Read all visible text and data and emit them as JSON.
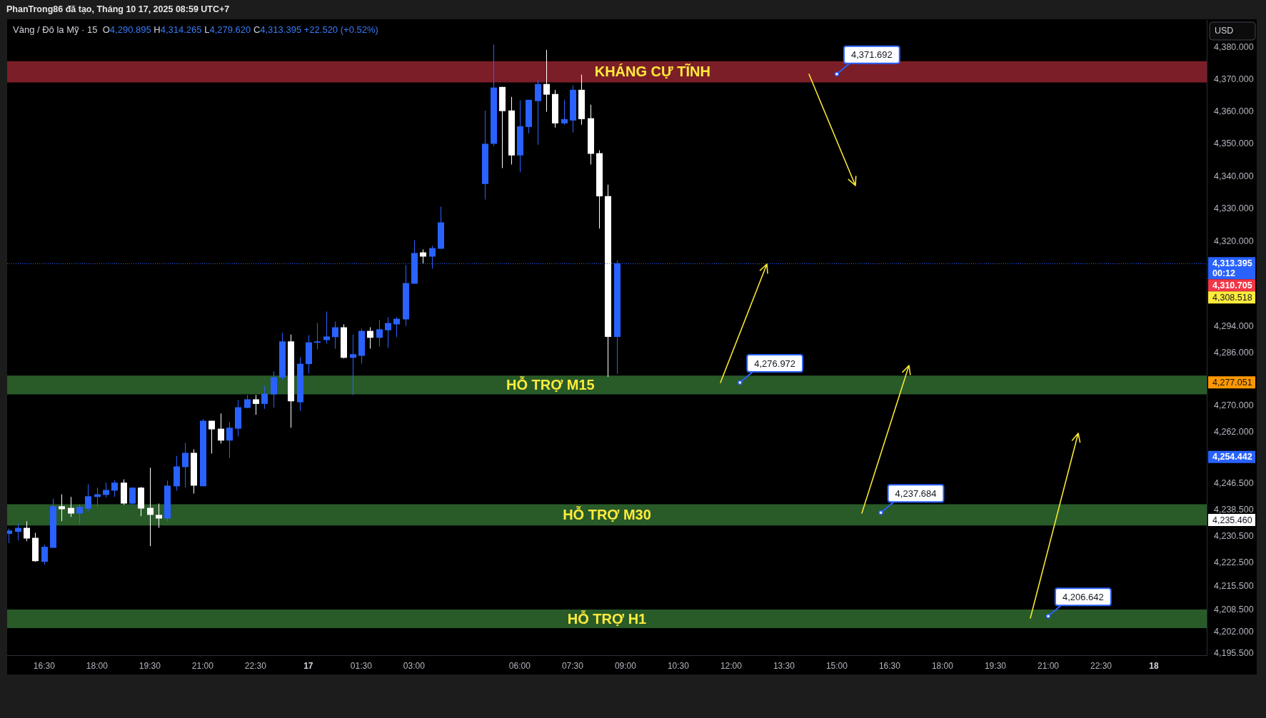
{
  "chart_data": {
    "type": "candlestick",
    "title": "Vàng / Đô la Mỹ · 15",
    "subtitle": "O4,290.895 H4,314.265 L4,279.620 C4,313.395 +22.520 (+0.52%)",
    "ylabel": "USD",
    "x": [
      "2025-10-16T15:30",
      "2025-10-16T15:45",
      "2025-10-16T16:00",
      "2025-10-16T16:15",
      "2025-10-16T16:30",
      "2025-10-16T16:45",
      "2025-10-16T17:00",
      "2025-10-16T17:15",
      "2025-10-16T17:30",
      "2025-10-16T17:45",
      "2025-10-16T18:00",
      "2025-10-16T18:15",
      "2025-10-16T18:30",
      "2025-10-16T18:45",
      "2025-10-16T19:00",
      "2025-10-16T19:15",
      "2025-10-16T19:30",
      "2025-10-16T19:45",
      "2025-10-16T20:00",
      "2025-10-16T20:15",
      "2025-10-16T20:30",
      "2025-10-16T20:45",
      "2025-10-16T21:00",
      "2025-10-16T21:15",
      "2025-10-16T21:30",
      "2025-10-16T21:45",
      "2025-10-16T22:00",
      "2025-10-16T22:15",
      "2025-10-16T22:30",
      "2025-10-16T22:45",
      "2025-10-16T23:00",
      "2025-10-16T23:15",
      "2025-10-16T23:30",
      "2025-10-16T23:45",
      "2025-10-17T00:00",
      "2025-10-17T00:15",
      "2025-10-17T00:30",
      "2025-10-17T00:45",
      "2025-10-17T01:00",
      "2025-10-17T01:15",
      "2025-10-17T01:30",
      "2025-10-17T01:45",
      "2025-10-17T02:00",
      "2025-10-17T02:15",
      "2025-10-17T02:30",
      "2025-10-17T02:45",
      "2025-10-17T03:00",
      "2025-10-17T03:15",
      "2025-10-17T03:30",
      "2025-10-17T03:45",
      "2025-10-17T05:00",
      "2025-10-17T05:15",
      "2025-10-17T05:30",
      "2025-10-17T05:45",
      "2025-10-17T06:00",
      "2025-10-17T06:15",
      "2025-10-17T06:30",
      "2025-10-17T06:45",
      "2025-10-17T07:00",
      "2025-10-17T07:15",
      "2025-10-17T07:30",
      "2025-10-17T07:45",
      "2025-10-17T08:00",
      "2025-10-17T08:15",
      "2025-10-17T08:30",
      "2025-10-17T08:45"
    ],
    "ohlc": [
      [
        4231.3,
        4232.9,
        4228.5,
        4232.3
      ],
      [
        4231.9,
        4234.4,
        4229.3,
        4233.1
      ],
      [
        4233.1,
        4235.1,
        4229.1,
        4229.9
      ],
      [
        4230.1,
        4231.6,
        4222.9,
        4223.1
      ],
      [
        4222.9,
        4228.0,
        4222.0,
        4227.4
      ],
      [
        4227.1,
        4241.9,
        4227.1,
        4239.6
      ],
      [
        4239.6,
        4243.2,
        4235.1,
        4238.7
      ],
      [
        4239.1,
        4242.4,
        4236.4,
        4237.4
      ],
      [
        4237.4,
        4240.2,
        4234.2,
        4239.4
      ],
      [
        4238.9,
        4246.2,
        4238.1,
        4242.6
      ],
      [
        4242.4,
        4245.2,
        4239.6,
        4243.2
      ],
      [
        4243.0,
        4246.7,
        4242.2,
        4244.5
      ],
      [
        4244.3,
        4247.5,
        4242.4,
        4246.7
      ],
      [
        4246.7,
        4247.7,
        4240.0,
        4240.4
      ],
      [
        4240.4,
        4245.2,
        4240.0,
        4245.2
      ],
      [
        4245.2,
        4245.4,
        4236.6,
        4238.9
      ],
      [
        4239.1,
        4251.2,
        4227.6,
        4237.0
      ],
      [
        4237.0,
        4240.4,
        4233.1,
        4235.9
      ],
      [
        4235.9,
        4247.3,
        4235.1,
        4245.8
      ],
      [
        4245.6,
        4254.8,
        4244.3,
        4251.6
      ],
      [
        4251.4,
        4258.7,
        4245.2,
        4255.7
      ],
      [
        4255.7,
        4256.8,
        4243.4,
        4245.8
      ],
      [
        4245.6,
        4265.9,
        4245.6,
        4265.4
      ],
      [
        4265.4,
        4265.4,
        4255.5,
        4262.8
      ],
      [
        4263.0,
        4267.6,
        4258.5,
        4259.4
      ],
      [
        4259.4,
        4265.0,
        4254.2,
        4263.3
      ],
      [
        4263.0,
        4271.7,
        4260.7,
        4269.5
      ],
      [
        4269.3,
        4273.2,
        4269.2,
        4271.9
      ],
      [
        4271.9,
        4273.2,
        4267.2,
        4270.5
      ],
      [
        4270.5,
        4276.0,
        4269.0,
        4273.6
      ],
      [
        4273.4,
        4280.4,
        4269.4,
        4278.6
      ],
      [
        4278.5,
        4292.1,
        4277.8,
        4289.5
      ],
      [
        4289.5,
        4291.6,
        4263.3,
        4271.3
      ],
      [
        4271.0,
        4284.7,
        4268.4,
        4282.7
      ],
      [
        4282.6,
        4291.4,
        4279.7,
        4289.2
      ],
      [
        4289.1,
        4295.1,
        4287.1,
        4289.5
      ],
      [
        4289.9,
        4298.6,
        4288.8,
        4291.0
      ],
      [
        4290.8,
        4295.5,
        4287.3,
        4293.8
      ],
      [
        4293.8,
        4294.7,
        4284.3,
        4284.5
      ],
      [
        4284.5,
        4291.6,
        4273.2,
        4285.6
      ],
      [
        4285.1,
        4293.4,
        4282.7,
        4292.7
      ],
      [
        4292.7,
        4293.8,
        4287.3,
        4290.6
      ],
      [
        4290.6,
        4296.0,
        4287.9,
        4293.2
      ],
      [
        4292.9,
        4296.9,
        4287.5,
        4295.1
      ],
      [
        4294.7,
        4296.9,
        4290.8,
        4296.4
      ],
      [
        4296.2,
        4312.8,
        4294.2,
        4307.3
      ],
      [
        4307.1,
        4320.4,
        4307.1,
        4316.5
      ],
      [
        4316.7,
        4317.6,
        4313.2,
        4315.4
      ],
      [
        4315.4,
        4318.7,
        4311.7,
        4318.0
      ],
      [
        4317.8,
        4330.7,
        4317.8,
        4325.9
      ],
      [
        4337.7,
        4360.4,
        4332.9,
        4350.1
      ],
      [
        4350.1,
        4380.8,
        4349.4,
        4367.5
      ],
      [
        4367.7,
        4367.7,
        4342.6,
        4360.2
      ],
      [
        4360.4,
        4364.6,
        4343.7,
        4346.5
      ],
      [
        4346.5,
        4363.5,
        4341.3,
        4355.5
      ],
      [
        4355.3,
        4363.7,
        4353.3,
        4363.7
      ],
      [
        4363.3,
        4369.9,
        4349.8,
        4368.6
      ],
      [
        4368.6,
        4379.2,
        4360.0,
        4365.3
      ],
      [
        4365.5,
        4366.8,
        4355.1,
        4356.4
      ],
      [
        4356.4,
        4363.7,
        4356.0,
        4357.7
      ],
      [
        4357.3,
        4368.2,
        4353.6,
        4366.8
      ],
      [
        4366.8,
        4371.5,
        4356.0,
        4357.7
      ],
      [
        4358.0,
        4362.2,
        4343.7,
        4347.0
      ],
      [
        4347.2,
        4348.1,
        4324.0,
        4333.9
      ],
      [
        4334.0,
        4337.5,
        4278.7,
        4290.9
      ],
      [
        4290.895,
        4314.265,
        4279.62,
        4313.395
      ]
    ],
    "colors": [
      "#2962ff",
      "#2962ff",
      "#ffffff",
      "#ffffff",
      "#2962ff",
      "#2962ff",
      "#ffffff",
      "#ffffff",
      "#2962ff",
      "#2962ff",
      "#2962ff",
      "#2962ff",
      "#2962ff",
      "#ffffff",
      "#2962ff",
      "#ffffff",
      "#ffffff",
      "#ffffff",
      "#2962ff",
      "#2962ff",
      "#2962ff",
      "#ffffff",
      "#2962ff",
      "#ffffff",
      "#ffffff",
      "#2962ff",
      "#2962ff",
      "#2962ff",
      "#ffffff",
      "#2962ff",
      "#2962ff",
      "#2962ff",
      "#ffffff",
      "#2962ff",
      "#2962ff",
      "#2962ff",
      "#2962ff",
      "#2962ff",
      "#ffffff",
      "#2962ff",
      "#2962ff",
      "#ffffff",
      "#2962ff",
      "#2962ff",
      "#2962ff",
      "#2962ff",
      "#2962ff",
      "#ffffff",
      "#2962ff",
      "#2962ff",
      "#2962ff",
      "#2962ff",
      "#ffffff",
      "#ffffff",
      "#2962ff",
      "#2962ff",
      "#2962ff",
      "#ffffff",
      "#ffffff",
      "#2962ff",
      "#2962ff",
      "#ffffff",
      "#ffffff",
      "#ffffff",
      "#ffffff",
      "#2962ff"
    ],
    "xlim": [
      "2025-10-16T15:27",
      "2025-10-18T01:30"
    ],
    "xticks": [
      {
        "value": "2025-10-16T16:30",
        "label": "16:30"
      },
      {
        "value": "2025-10-16T18:00",
        "label": "18:00"
      },
      {
        "value": "2025-10-16T19:30",
        "label": "19:30"
      },
      {
        "value": "2025-10-16T21:00",
        "label": "21:00"
      },
      {
        "value": "2025-10-16T22:30",
        "label": "22:30"
      },
      {
        "value": "2025-10-17T00:00",
        "label": "17"
      },
      {
        "value": "2025-10-17T01:30",
        "label": "01:30"
      },
      {
        "value": "2025-10-17T03:00",
        "label": "03:00"
      },
      {
        "value": "2025-10-17T06:00",
        "label": "06:00"
      },
      {
        "value": "2025-10-17T07:30",
        "label": "07:30"
      },
      {
        "value": "2025-10-17T09:00",
        "label": "09:00"
      },
      {
        "value": "2025-10-17T10:30",
        "label": "10:30"
      },
      {
        "value": "2025-10-17T12:00",
        "label": "12:00"
      },
      {
        "value": "2025-10-17T13:30",
        "label": "13:30"
      },
      {
        "value": "2025-10-17T15:00",
        "label": "15:00"
      },
      {
        "value": "2025-10-17T16:30",
        "label": "16:30"
      },
      {
        "value": "2025-10-17T18:00",
        "label": "18:00"
      },
      {
        "value": "2025-10-17T19:30",
        "label": "19:30"
      },
      {
        "value": "2025-10-17T21:00",
        "label": "21:00"
      },
      {
        "value": "2025-10-17T22:30",
        "label": "22:30"
      },
      {
        "value": "2025-10-18T00:00",
        "label": "18"
      }
    ],
    "ylim": [
      4195,
      4388.5
    ],
    "yticks": [
      {
        "value": 4380,
        "label": "4,380.000"
      },
      {
        "value": 4370,
        "label": "4,370.000"
      },
      {
        "value": 4360,
        "label": "4,360.000"
      },
      {
        "value": 4350,
        "label": "4,350.000"
      },
      {
        "value": 4340,
        "label": "4,340.000"
      },
      {
        "value": 4330,
        "label": "4,330.000"
      },
      {
        "value": 4320,
        "label": "4,320.000"
      },
      {
        "value": 4294,
        "label": "4,294.000"
      },
      {
        "value": 4286,
        "label": "4,286.000"
      },
      {
        "value": 4270,
        "label": "4,270.000"
      },
      {
        "value": 4262,
        "label": "4,262.000"
      },
      {
        "value": 4246.5,
        "label": "4,246.500"
      },
      {
        "value": 4238.5,
        "label": "4,238.500"
      },
      {
        "value": 4230.5,
        "label": "4,230.500"
      },
      {
        "value": 4222.5,
        "label": "4,222.500"
      },
      {
        "value": 4215.5,
        "label": "4,215.500"
      },
      {
        "value": 4208.5,
        "label": "4,208.500"
      },
      {
        "value": 4202,
        "label": "4,202.000"
      },
      {
        "value": 4195.5,
        "label": "4,195.500"
      }
    ],
    "log": "y",
    "ref_lines": [
      {
        "axis": "y",
        "value": 4313.395,
        "label": "4,313.395\n00:12",
        "color": "#2962ff",
        "line_style": "dotted"
      }
    ],
    "bands": [
      {
        "axis": "y",
        "from": 4369.1,
        "to": 4375.7,
        "label": "KHÁNG CỰ TĨNH",
        "color": "#7b1e27"
      },
      {
        "axis": "y",
        "from": 4273.4,
        "to": 4279.1,
        "label": "HỖ TRỢ M15",
        "color": "#295b29"
      },
      {
        "axis": "y",
        "from": 4233.8,
        "to": 4240.2,
        "label": "HỖ TRỢ M30",
        "color": "#295b29"
      },
      {
        "axis": "y",
        "from": 4203.1,
        "to": 4208.6,
        "label": "HỖ TRỢ H1",
        "color": "#295b29"
      }
    ],
    "annotations": [
      "PhanTrong86 đã tạo, Tháng 10 17, 2025 08:59 UTC+7",
      {
        "text": "4,371.692",
        "x": "2025-10-17T15:00",
        "y": 4371.692
      },
      {
        "text": "4,276.972",
        "x": "2025-10-17T12:15",
        "y": 4276.972
      },
      {
        "text": "4,237.684",
        "x": "2025-10-17T16:15",
        "y": 4237.684
      },
      {
        "text": "4,206.642",
        "x": "2025-10-17T21:00",
        "y": 4206.642
      },
      "4,310.705",
      "4,308.518",
      "4,277.051",
      "4,254.442",
      "4,235.460"
    ]
  }
}
